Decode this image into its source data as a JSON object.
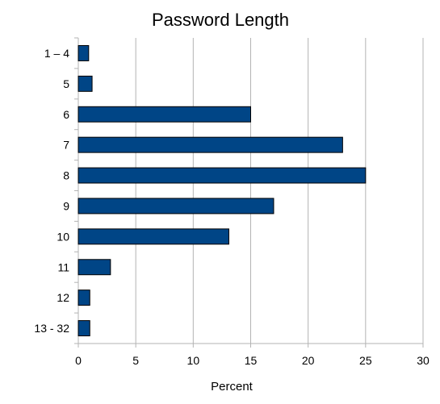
{
  "chart_data": {
    "type": "bar",
    "orientation": "horizontal",
    "title": "Password Length",
    "xlabel": "Percent",
    "ylabel": "",
    "categories": [
      "1 – 4",
      "5",
      "6",
      "7",
      "8",
      "9",
      "10",
      "11",
      "12",
      "13 - 32"
    ],
    "values": [
      0.9,
      1.2,
      15.0,
      23.0,
      25.0,
      17.0,
      13.1,
      2.8,
      1.0,
      1.0
    ],
    "xlim": [
      0,
      30
    ],
    "xticks": [
      "0",
      "5",
      "10",
      "15",
      "20",
      "25",
      "30"
    ],
    "grid": true,
    "legend": "none",
    "colors": {
      "bar": "#004586",
      "bar_border": "#000000",
      "grid": "#b3b3b3"
    }
  }
}
